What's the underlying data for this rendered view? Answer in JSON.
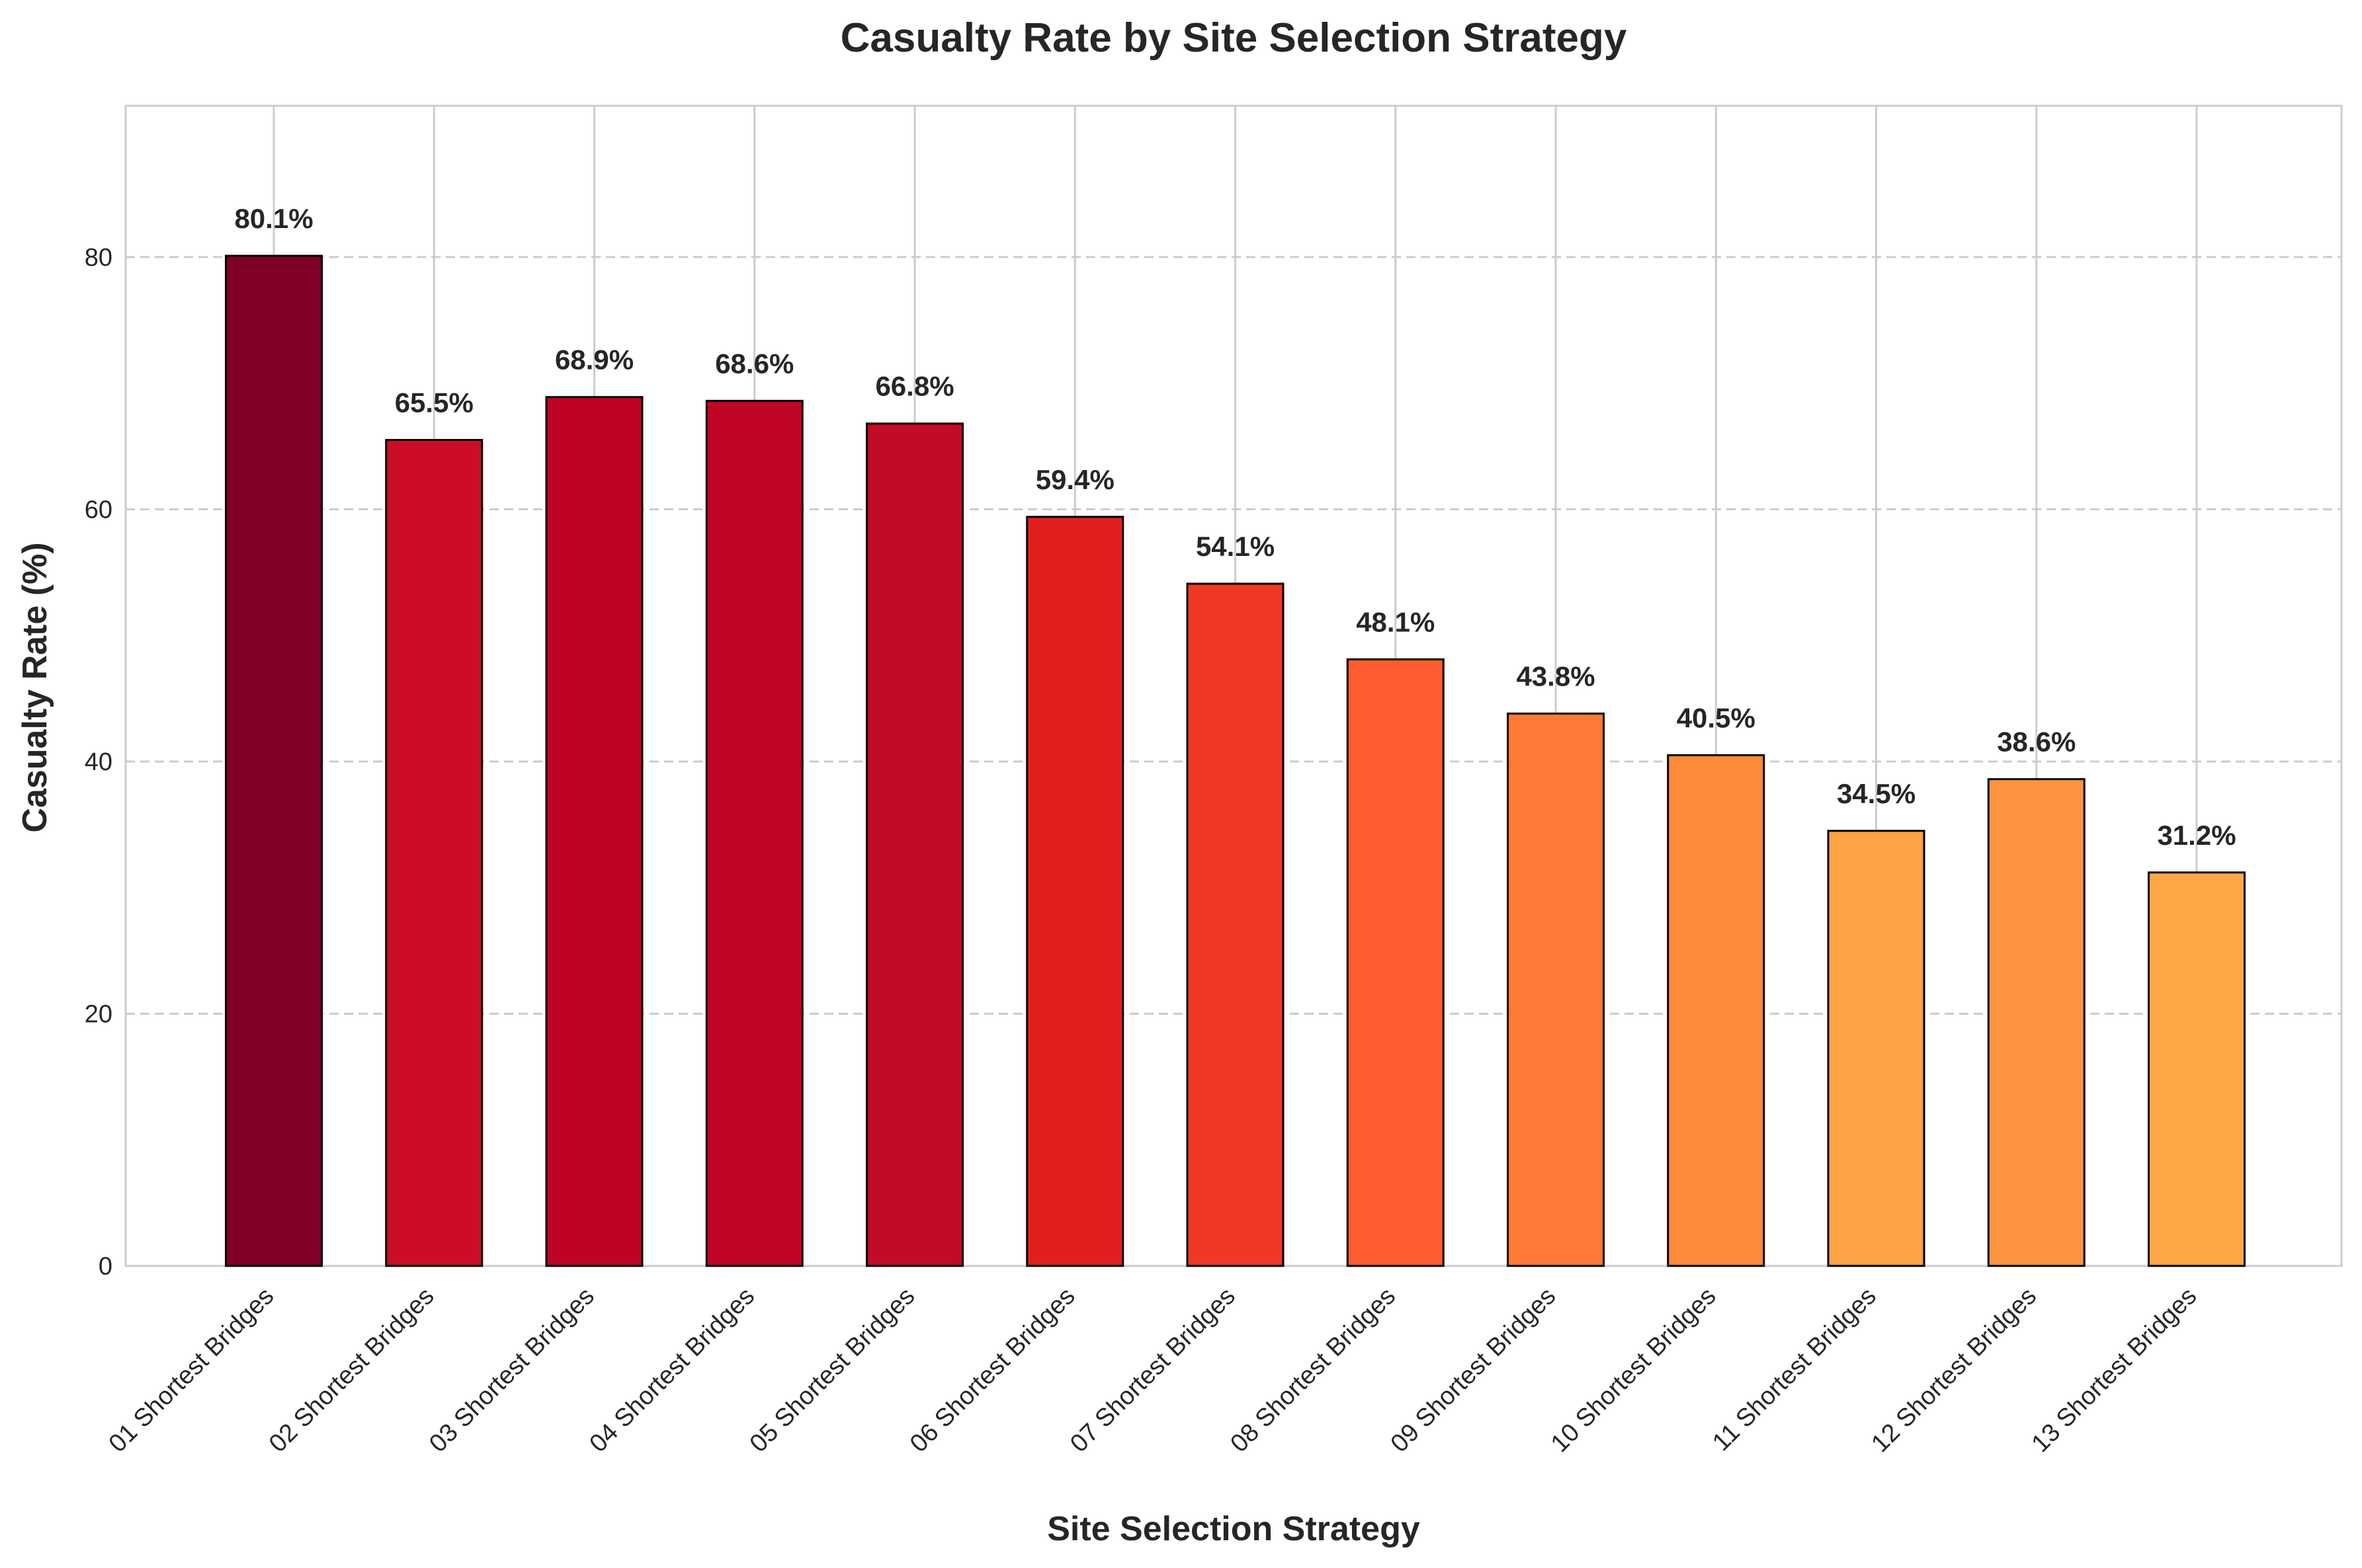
{
  "chart_data": {
    "type": "bar",
    "title": "Casualty Rate by Site Selection Strategy",
    "xlabel": "Site Selection Strategy",
    "ylabel": "Casualty Rate (%)",
    "ylim": [
      0,
      92
    ],
    "yticks": [
      0,
      20,
      40,
      60,
      80
    ],
    "grid": true,
    "categories": [
      "01 Shortest Bridges",
      "02 Shortest Bridges",
      "03 Shortest Bridges",
      "04 Shortest Bridges",
      "05 Shortest Bridges",
      "06 Shortest Bridges",
      "07 Shortest Bridges",
      "08 Shortest Bridges",
      "09 Shortest Bridges",
      "10 Shortest Bridges",
      "11 Shortest Bridges",
      "12 Shortest Bridges",
      "13 Shortest Bridges"
    ],
    "values": [
      80.1,
      65.5,
      68.9,
      68.6,
      66.8,
      59.4,
      54.1,
      48.1,
      43.8,
      40.5,
      34.5,
      38.6,
      31.2
    ],
    "value_labels": [
      "80.1%",
      "65.5%",
      "68.9%",
      "68.6%",
      "66.8%",
      "59.4%",
      "54.1%",
      "48.1%",
      "43.8%",
      "40.5%",
      "34.5%",
      "38.6%",
      "31.2%"
    ],
    "colors": [
      "#800026",
      "#cb0e26",
      "#bf0326",
      "#c00426",
      "#c30a26",
      "#e31e1f",
      "#f03924",
      "#fd5b30",
      "#fe7935",
      "#fe8a3b",
      "#fea245",
      "#fe943f",
      "#fea747"
    ]
  }
}
